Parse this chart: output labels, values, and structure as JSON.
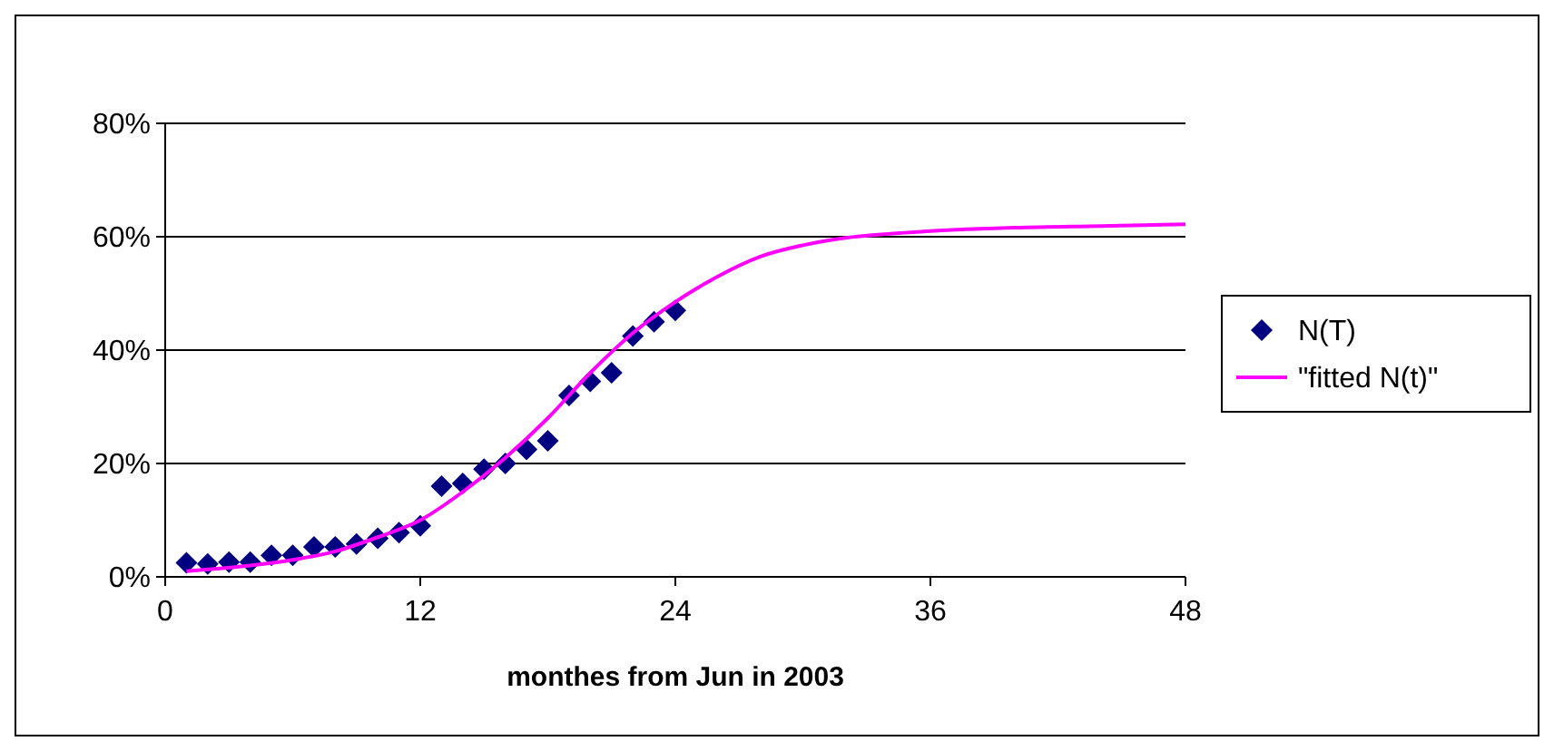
{
  "chart_data": {
    "type": "scatter",
    "xlabel": "monthes from Jun in 2003",
    "xlim": [
      0,
      48
    ],
    "xticks": [
      0,
      12,
      24,
      36,
      48
    ],
    "ylim": [
      0,
      80
    ],
    "yticks": [
      {
        "value": 0,
        "label": "0%"
      },
      {
        "value": 20,
        "label": "20%"
      },
      {
        "value": 40,
        "label": "40%"
      },
      {
        "value": 60,
        "label": "60%"
      },
      {
        "value": 80,
        "label": "80%"
      }
    ],
    "grid": "y",
    "legend": "right",
    "series": [
      {
        "name": "N(T)",
        "marker": "diamond",
        "color": "#000080",
        "x": [
          1,
          2,
          3,
          4,
          5,
          6,
          7,
          8,
          9,
          10,
          11,
          12,
          13,
          14,
          15,
          16,
          17,
          18,
          19,
          20,
          21,
          22,
          23,
          24
        ],
        "values": [
          2.5,
          2.3,
          2.6,
          2.6,
          3.8,
          3.8,
          5.3,
          5.3,
          5.8,
          6.8,
          7.8,
          9,
          16,
          16.5,
          19,
          20,
          22.5,
          24,
          32,
          34.5,
          36,
          42.5,
          45,
          47
        ]
      },
      {
        "name": "\"fitted N(t)\"",
        "type": "line",
        "marker": "none",
        "color": "#ff00ff",
        "x": [
          1,
          4,
          6,
          8,
          10,
          12,
          14,
          16,
          18,
          20,
          22,
          24,
          26,
          28,
          30,
          32,
          34,
          36,
          40,
          44,
          48
        ],
        "values": [
          1,
          2,
          3,
          4.5,
          7,
          10,
          15,
          21,
          28,
          36,
          43,
          48.5,
          53,
          56.5,
          58.5,
          59.8,
          60.5,
          61,
          61.6,
          61.9,
          62.2
        ]
      }
    ]
  }
}
